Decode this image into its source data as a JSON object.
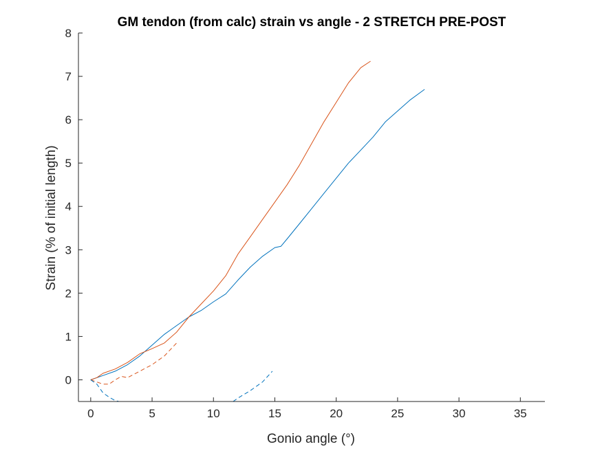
{
  "chart_data": {
    "type": "line",
    "title": "GM tendon (from calc) strain vs angle - 2 STRETCH PRE-POST",
    "xlabel": "Gonio angle (°)",
    "ylabel": "Strain (% of initial length)",
    "xlim": [
      -1,
      37
    ],
    "ylim": [
      -0.5,
      8
    ],
    "xticks": [
      0,
      5,
      10,
      15,
      20,
      25,
      30,
      35
    ],
    "yticks": [
      0,
      1,
      2,
      3,
      4,
      5,
      6,
      7,
      8
    ],
    "grid": false,
    "box": false,
    "series": [
      {
        "color": "#0072BD",
        "style": "solid",
        "x": [
          0,
          1,
          2,
          3,
          4,
          5,
          6,
          7,
          8,
          9,
          10,
          11,
          12,
          13,
          14,
          15,
          15.5,
          16,
          17,
          18,
          19,
          20,
          21,
          22,
          23,
          24,
          25,
          26,
          27.2
        ],
        "y": [
          0,
          0.1,
          0.2,
          0.35,
          0.55,
          0.8,
          1.05,
          1.25,
          1.45,
          1.6,
          1.8,
          1.98,
          2.3,
          2.6,
          2.85,
          3.05,
          3.08,
          3.25,
          3.6,
          3.95,
          4.3,
          4.65,
          5.0,
          5.3,
          5.6,
          5.95,
          6.2,
          6.45,
          6.7
        ]
      },
      {
        "color": "#D95319",
        "style": "solid",
        "x": [
          0,
          0.5,
          1,
          2,
          3,
          4,
          5,
          6,
          7,
          8,
          9,
          10,
          11,
          12,
          13,
          14,
          15,
          16,
          17,
          18,
          19,
          20,
          21,
          22,
          22.8
        ],
        "y": [
          0,
          0.05,
          0.15,
          0.25,
          0.4,
          0.6,
          0.72,
          0.85,
          1.1,
          1.45,
          1.75,
          2.05,
          2.4,
          2.9,
          3.3,
          3.7,
          4.1,
          4.5,
          4.95,
          5.45,
          5.95,
          6.4,
          6.85,
          7.2,
          7.35
        ]
      },
      {
        "color": "#D95319",
        "style": "dashed",
        "x": [
          0,
          0.5,
          1,
          1.5,
          2,
          2.5,
          3,
          4,
          5,
          6,
          7
        ],
        "y": [
          0,
          -0.05,
          -0.1,
          -0.1,
          0,
          0.08,
          0.05,
          0.2,
          0.35,
          0.55,
          0.85
        ]
      },
      {
        "color": "#0072BD",
        "style": "dashed",
        "x": [
          0,
          0.5,
          1,
          1.5,
          2,
          2.3
        ],
        "y": [
          0,
          -0.1,
          -0.3,
          -0.4,
          -0.48,
          -0.5
        ]
      },
      {
        "color": "#0072BD",
        "style": "dashed",
        "x": [
          11.6,
          12,
          13,
          14,
          14.8
        ],
        "y": [
          -0.5,
          -0.42,
          -0.25,
          -0.05,
          0.2
        ]
      }
    ]
  }
}
